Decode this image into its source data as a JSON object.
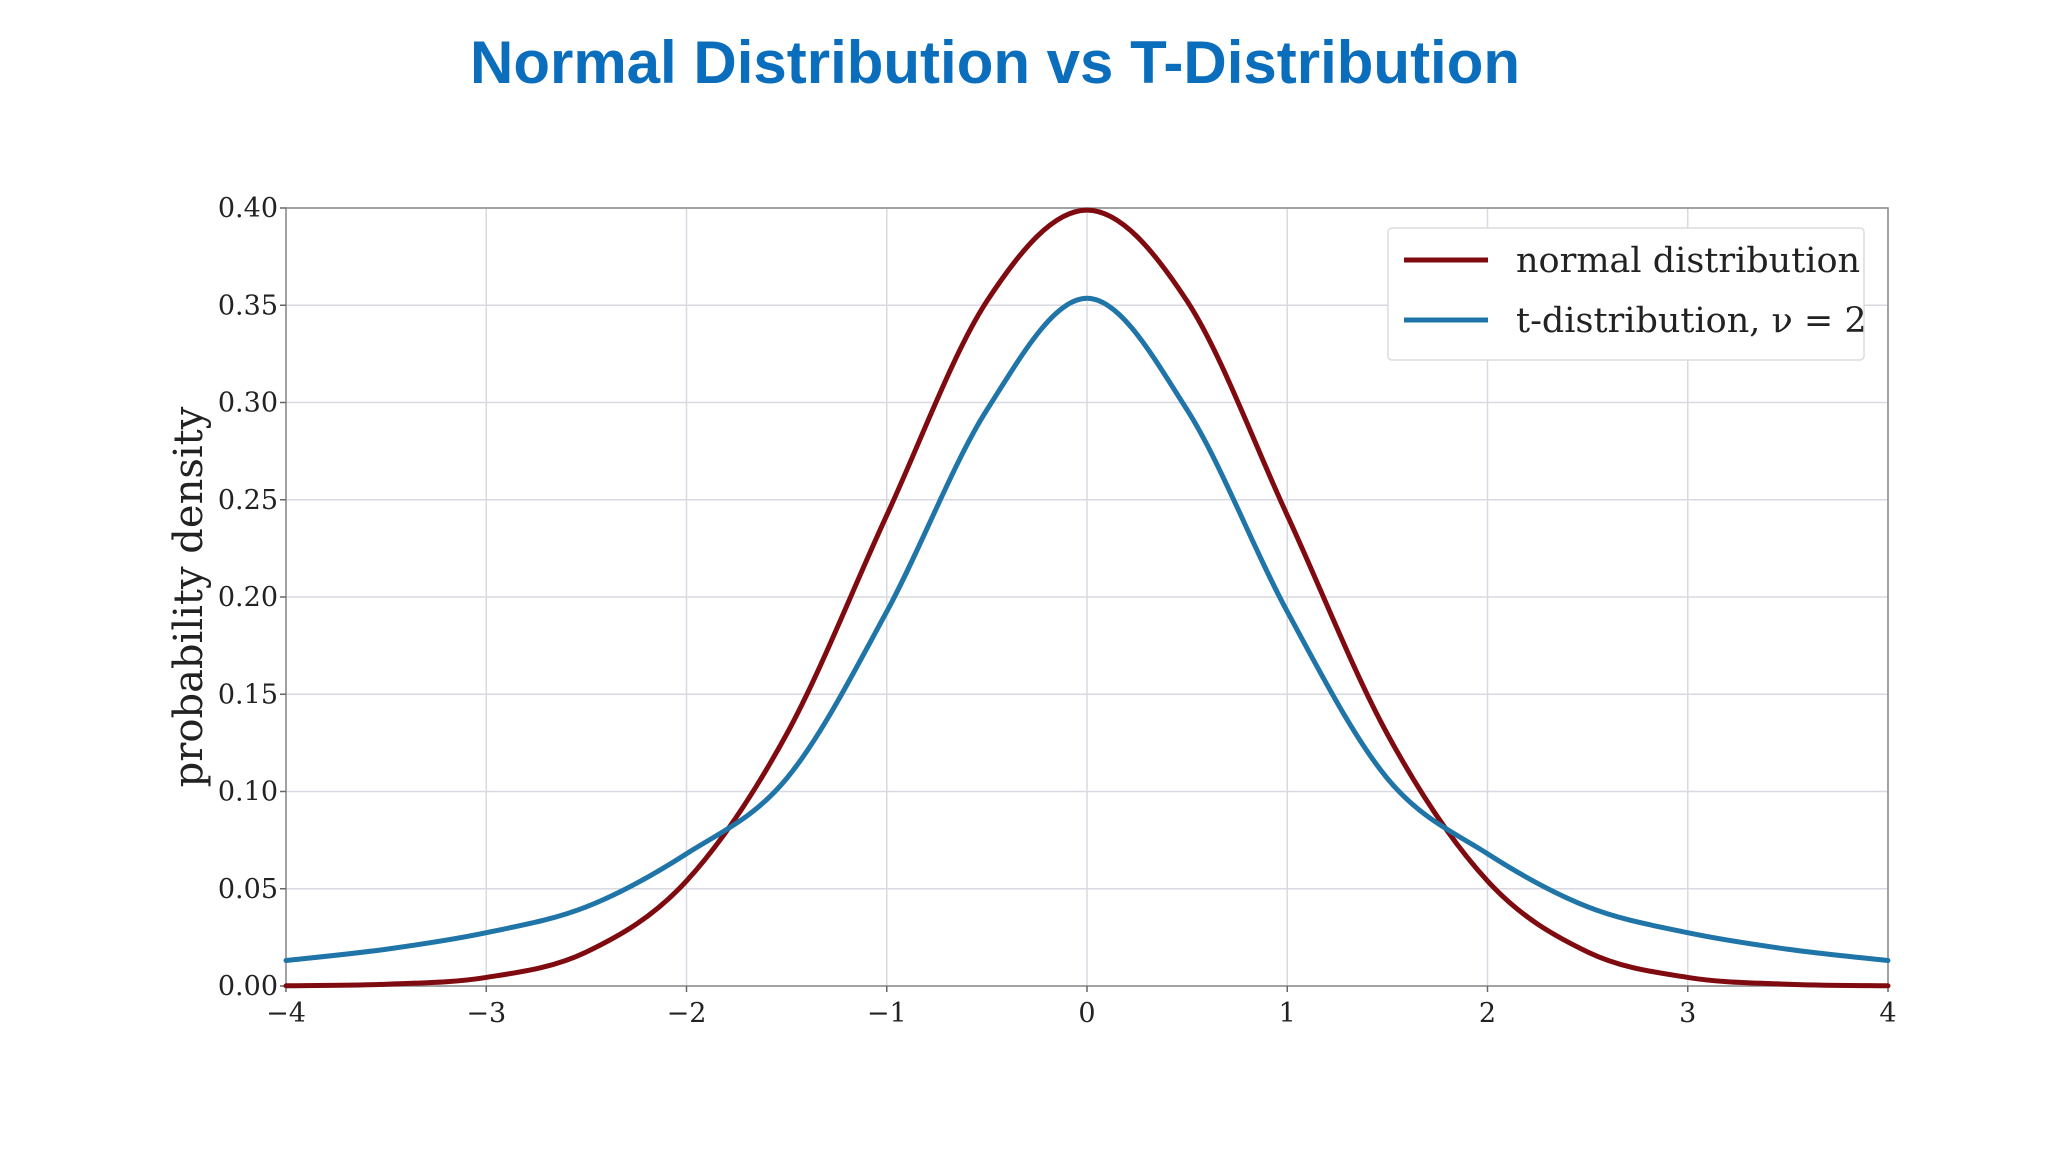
{
  "slide": {
    "title": "Normal Distribution vs T-Distribution"
  },
  "chart_data": {
    "type": "line",
    "ylabel": "probability density",
    "xlabel": "",
    "xlim": [
      -4,
      4
    ],
    "ylim": [
      0,
      0.4
    ],
    "x_ticks": [
      -4,
      -3,
      -2,
      -1,
      0,
      1,
      2,
      3,
      4
    ],
    "x_tick_labels": [
      "−4",
      "−3",
      "−2",
      "−1",
      "0",
      "1",
      "2",
      "3",
      "4"
    ],
    "y_ticks": [
      0,
      0.05,
      0.1,
      0.15,
      0.2,
      0.25,
      0.3,
      0.35,
      0.4
    ],
    "y_tick_labels": [
      "0.00",
      "0.05",
      "0.10",
      "0.15",
      "0.20",
      "0.25",
      "0.30",
      "0.35",
      "0.40"
    ],
    "grid": true,
    "legend_position": "top-right",
    "x": [
      -4,
      -3.5,
      -3,
      -2.5,
      -2,
      -1.5,
      -1,
      -0.5,
      0,
      0.5,
      1,
      1.5,
      2,
      2.5,
      3,
      3.5,
      4
    ],
    "series": [
      {
        "name": "normal distribution",
        "color": "#7f0a0f",
        "values": [
          0.0001,
          0.0009,
          0.0044,
          0.0175,
          0.054,
          0.1295,
          0.242,
          0.3521,
          0.3989,
          0.3521,
          0.242,
          0.1295,
          0.054,
          0.0175,
          0.0044,
          0.0009,
          0.0001
        ]
      },
      {
        "name": "t-distribution, ν = 2",
        "color": "#1f74a8",
        "values": [
          0.0131,
          0.0189,
          0.0274,
          0.0407,
          0.068,
          0.1067,
          0.1925,
          0.2962,
          0.3536,
          0.2962,
          0.1925,
          0.1067,
          0.068,
          0.0407,
          0.0274,
          0.0189,
          0.0131
        ]
      }
    ]
  }
}
